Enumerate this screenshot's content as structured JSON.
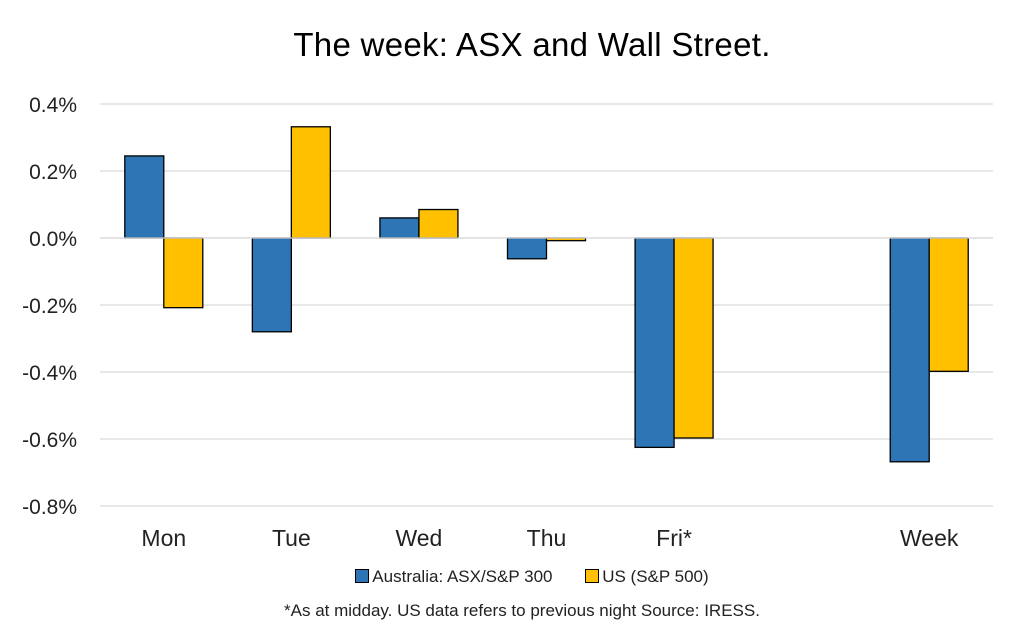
{
  "chart_data": {
    "type": "bar",
    "title": "The week:  ASX and Wall Street.",
    "categories": [
      "Mon",
      "Tue",
      "Wed",
      "Thu",
      "Fri*",
      "",
      "Week"
    ],
    "series": [
      {
        "name": "Australia: ASX/S&P 300",
        "color": "#2e75b6",
        "values": [
          0.245,
          -0.28,
          0.06,
          -0.062,
          -0.625,
          null,
          -0.668
        ]
      },
      {
        "name": "US (S&P 500)",
        "color": "#ffc000",
        "values": [
          -0.208,
          0.332,
          0.085,
          -0.008,
          -0.597,
          null,
          -0.398
        ]
      }
    ],
    "ylim": [
      -0.8,
      0.4
    ],
    "yticks": [
      0.4,
      0.2,
      0.0,
      -0.2,
      -0.4,
      -0.6,
      -0.8
    ],
    "ytick_labels": [
      "0.4%",
      "0.2%",
      "0.0%",
      "-0.2%",
      "-0.4%",
      "-0.6%",
      "-0.8%"
    ],
    "xlabel": "",
    "ylabel": "",
    "grid": true,
    "legend_position": "bottom",
    "footnote": "*As at midday. US data refers to previous night  Source:  IRESS."
  }
}
